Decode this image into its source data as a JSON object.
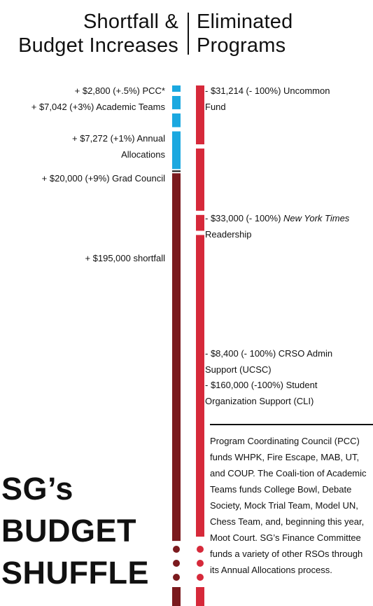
{
  "header": {
    "left": [
      "Shortfall &",
      "Budget Increases"
    ],
    "right": [
      "Eliminated",
      "Programs"
    ]
  },
  "title_lines": [
    "SG’s",
    "BUDGET",
    "SHUFFLE"
  ],
  "note": "Program Coordinating Council (PCC) funds WHPK, Fire Escape, MAB, UT, and COUP. The Coali-tion of Academic Teams funds College Bowl, Debate Society, Mock Trial Team, Model UN, Chess Team, and, beginning this year, Moot Court. SG’s Finance Committee funds a variety of other RSOs through its Annual Allocations process.",
  "colors": {
    "increase": "#1ba8e0",
    "shortfall": "#7b1a1e",
    "eliminated": "#d6293a",
    "text": "#111111"
  },
  "chart_data": {
    "type": "bar",
    "title": "SG’s BUDGET SHUFFLE",
    "series": [
      {
        "name": "Shortfall & Budget Increases",
        "items": [
          {
            "amount": 2800,
            "label_lines": [
              "+ $2,800 (+.5%) PCC*"
            ],
            "kind": "increase"
          },
          {
            "amount": 7042,
            "label_lines": [
              "+ $7,042 (+3%)  Academic Teams"
            ],
            "kind": "increase"
          },
          {
            "amount": 7272,
            "label_lines": [
              "+ $7,272 (+1%)  Annual",
              "Allocations"
            ],
            "kind": "increase"
          },
          {
            "amount": 20000,
            "label_lines": [
              "+ $20,000 (+9%)  Grad Council"
            ],
            "kind": "increase"
          },
          {
            "amount": 195000,
            "label_lines": [
              "+ $195,000 shortfall"
            ],
            "kind": "shortfall"
          }
        ]
      },
      {
        "name": "Eliminated Programs",
        "items": [
          {
            "amount": 31214,
            "label_lines": [
              "- $31,214 (- 100%) Uncommon",
              "Fund"
            ],
            "kind": "eliminated"
          },
          {
            "amount": 33000,
            "label_pre": "- $33,000 (- 100%) ",
            "label_italic": "New York Times",
            "label_post": "Readership",
            "kind": "eliminated"
          },
          {
            "amount": 8400,
            "label_lines": [
              "- $8,400 (- 100%) CRSO Admin",
              "Support (UCSC)"
            ],
            "kind": "eliminated"
          },
          {
            "amount": 160000,
            "label_lines": [
              "- $160,000 (-100%) Student",
              "Organization Support (CLI)"
            ],
            "kind": "eliminated"
          }
        ]
      }
    ]
  }
}
